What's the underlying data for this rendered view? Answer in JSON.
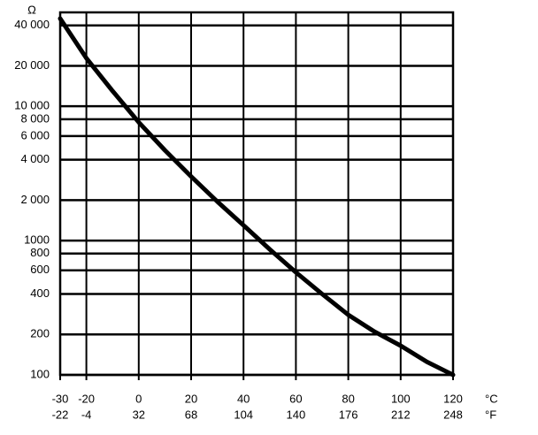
{
  "chart_data": {
    "type": "line",
    "y_unit": "Ω",
    "x_unit": "°C",
    "x2_unit": "°F",
    "log_y": true,
    "grid": true,
    "color": "#000000",
    "x": [
      -30,
      -20,
      -10,
      0,
      10,
      20,
      30,
      40,
      50,
      60,
      70,
      80,
      90,
      100,
      110,
      120
    ],
    "values": [
      45000,
      22800,
      13000,
      7600,
      4700,
      3000,
      1950,
      1300,
      860,
      580,
      400,
      280,
      210,
      165,
      125,
      100
    ],
    "xlim": [
      -30,
      120
    ],
    "xticks": [
      -30,
      -20,
      0,
      20,
      40,
      60,
      80,
      100,
      120
    ],
    "x2lim": [
      -22,
      248
    ],
    "x2ticks": [
      -22,
      -4,
      32,
      68,
      104,
      140,
      176,
      212,
      248
    ],
    "ylim": [
      100,
      50000
    ],
    "yticks": [
      100,
      200,
      400,
      600,
      800,
      1000,
      {
        "value": 2000,
        "label": "2 000"
      },
      {
        "value": 4000,
        "label": "4 000"
      },
      {
        "value": 6000,
        "label": "6 000"
      },
      {
        "value": 8000,
        "label": "8 000"
      },
      {
        "value": 10000,
        "label": "10 000"
      },
      {
        "value": 20000,
        "label": "20 000"
      },
      {
        "value": 40000,
        "label": "40 000"
      }
    ]
  }
}
